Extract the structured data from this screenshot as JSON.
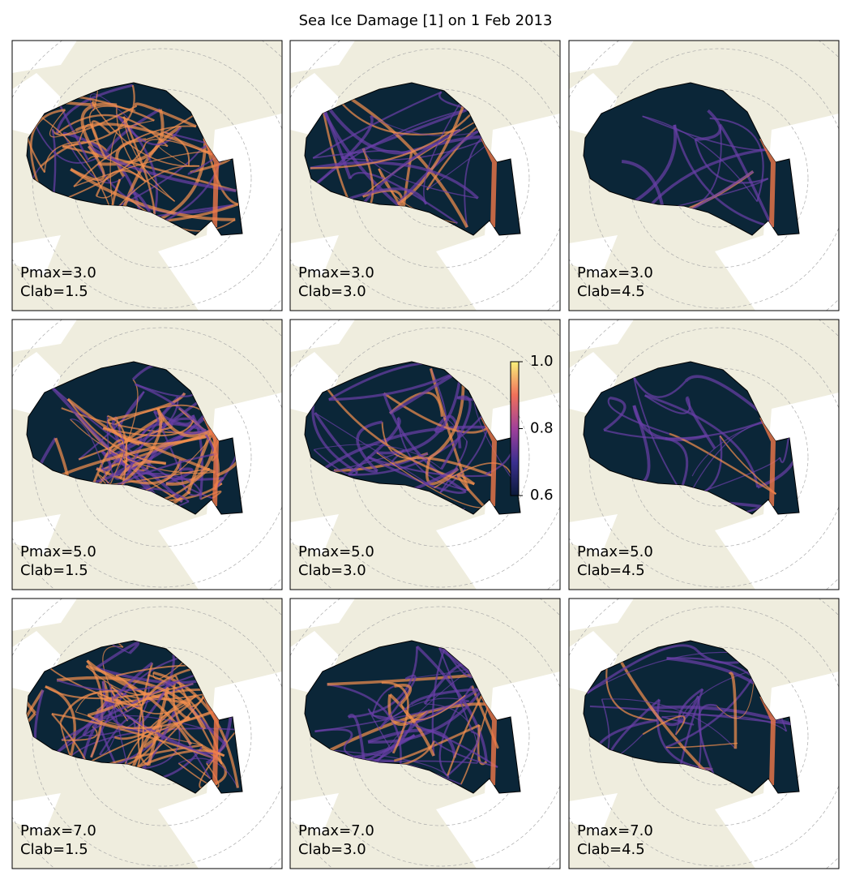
{
  "title": "Sea Ice Damage [1] on 1 Feb 2013",
  "panels": [
    {
      "pmax": "Pmax=3.0",
      "clab": "Clab=1.5"
    },
    {
      "pmax": "Pmax=3.0",
      "clab": "Clab=3.0"
    },
    {
      "pmax": "Pmax=3.0",
      "clab": "Clab=4.5"
    },
    {
      "pmax": "Pmax=5.0",
      "clab": "Clab=1.5"
    },
    {
      "pmax": "Pmax=5.0",
      "clab": "Clab=3.0"
    },
    {
      "pmax": "Pmax=5.0",
      "clab": "Clab=4.5"
    },
    {
      "pmax": "Pmax=7.0",
      "clab": "Clab=1.5"
    },
    {
      "pmax": "Pmax=7.0",
      "clab": "Clab=3.0"
    },
    {
      "pmax": "Pmax=7.0",
      "clab": "Clab=4.5"
    }
  ],
  "colorbar": {
    "lim": [
      0.6,
      1.0
    ],
    "ticks": [
      {
        "value": 0.6,
        "label": "0.6"
      },
      {
        "value": 0.8,
        "label": "0.8"
      },
      {
        "value": 1.0,
        "label": "1.0"
      }
    ]
  }
}
